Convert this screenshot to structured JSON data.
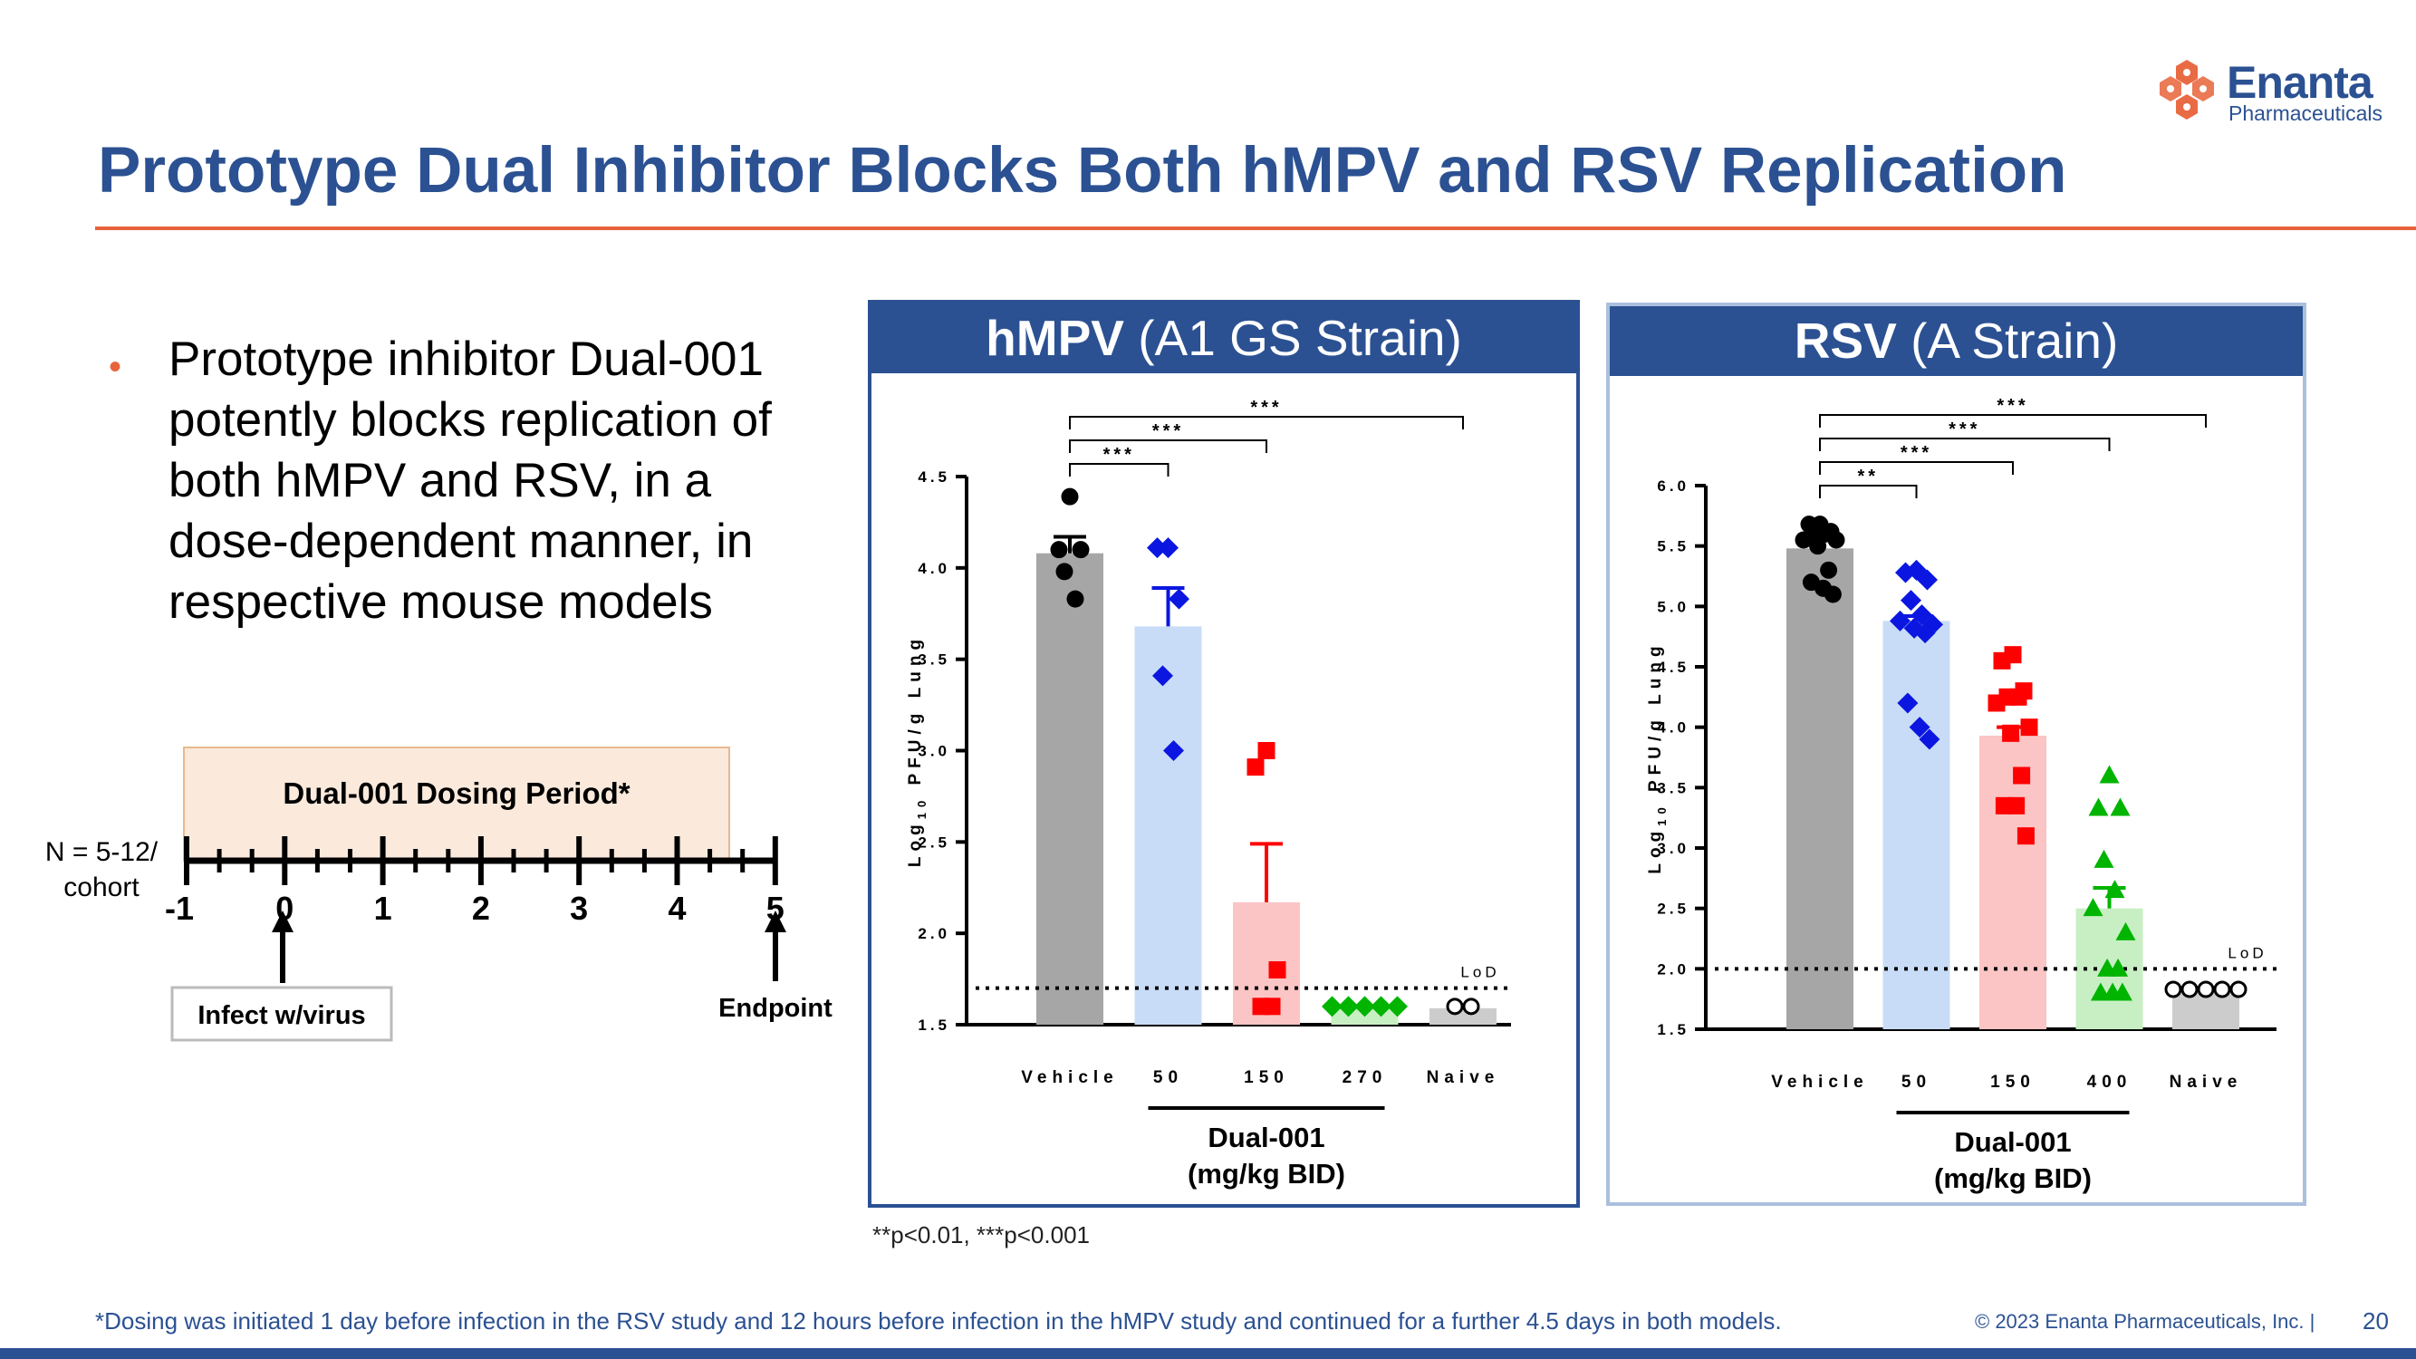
{
  "logo": {
    "name": "Enanta",
    "subtitle": "Pharmaceuticals",
    "mark_icon": "hexagon-molecule-icon",
    "color": "#e8633a"
  },
  "title": "Prototype Dual Inhibitor Blocks Both hMPV and RSV Replication",
  "bullet": "Prototype inhibitor Dual-001 potently blocks replication of both hMPV and RSV, in a dose-dependent manner, in respective mouse models",
  "timeline": {
    "period_label": "Dual-001 Dosing Period*",
    "cohort_label_1": "N = 5-12/",
    "cohort_label_2": "cohort",
    "ticks": [
      "-1",
      "0",
      "1",
      "2",
      "3",
      "4",
      "5"
    ],
    "infect_label": "Infect w/virus",
    "endpoint_label": "Endpoint"
  },
  "panels": {
    "hmpv": {
      "title_bold": "hMPV",
      "title_rest": "(A1 GS Strain)"
    },
    "rsv": {
      "title_bold": "RSV",
      "title_rest": "(A Strain)"
    }
  },
  "chart_data": [
    {
      "type": "bar",
      "title": "hMPV (A1 GS Strain)",
      "ylabel_pre": "Log",
      "ylabel_sub": "10",
      "ylabel_post": " PFU/g Lung",
      "ylim": [
        1.5,
        4.5
      ],
      "yticks": [
        "1.5",
        "2.0",
        "2.5",
        "3.0",
        "3.5",
        "4.0",
        "4.5"
      ],
      "categories": [
        "Vehicle",
        "50",
        "150",
        "270",
        "Naive"
      ],
      "group_label_1": "Dual-001",
      "group_label_2": "(mg/kg BID)",
      "means": [
        4.08,
        3.68,
        2.17,
        1.6,
        1.59
      ],
      "error_upper": [
        4.17,
        3.89,
        2.49,
        1.6,
        1.59
      ],
      "points": [
        [
          4.39,
          4.1,
          4.1,
          3.98,
          3.83
        ],
        [
          4.11,
          4.11,
          3.83,
          3.41,
          3.0
        ],
        [
          3.0,
          2.91,
          1.8,
          1.6,
          1.6
        ],
        [
          1.6,
          1.6,
          1.6,
          1.6,
          1.6
        ],
        [
          1.6,
          1.6
        ]
      ],
      "markers": [
        "circle",
        "diamond",
        "square",
        "diamond",
        "open-circle"
      ],
      "bar_colors": [
        "#a6a6a6",
        "#c9dcf7",
        "#fbc5c5",
        "#c8efc3",
        "#cccccc"
      ],
      "point_colors": [
        "#000000",
        "#0b17e0",
        "#ff0000",
        "#00b400",
        "#000000"
      ],
      "lod": 1.7,
      "lod_label": "LoD",
      "significance": [
        {
          "from": 0,
          "to": 1,
          "label": "***"
        },
        {
          "from": 0,
          "to": 2,
          "label": "***"
        },
        {
          "from": 0,
          "to": 4,
          "label": "***"
        }
      ]
    },
    {
      "type": "bar",
      "title": "RSV (A Strain)",
      "ylabel_pre": "Log",
      "ylabel_sub": "10",
      "ylabel_post": " PFU/g Lung",
      "ylim": [
        1.5,
        6.0
      ],
      "yticks": [
        "1.5",
        "2.0",
        "2.5",
        "3.0",
        "3.5",
        "4.0",
        "4.5",
        "5.0",
        "5.5",
        "6.0"
      ],
      "categories": [
        "Vehicle",
        "50",
        "150",
        "400",
        "Naive"
      ],
      "group_label_1": "Dual-001",
      "group_label_2": "(mg/kg BID)",
      "means": [
        5.48,
        4.88,
        3.93,
        2.5,
        1.8
      ],
      "error_upper": [
        5.55,
        4.92,
        4.0,
        2.67,
        1.8
      ],
      "points": [
        [
          5.68,
          5.68,
          5.62,
          5.62,
          5.6,
          5.55,
          5.55,
          5.5,
          5.3,
          5.2,
          5.15,
          5.1
        ],
        [
          5.3,
          5.28,
          5.22,
          5.05,
          4.93,
          4.88,
          4.85,
          4.82,
          4.78,
          4.2,
          4.0,
          3.9
        ],
        [
          4.6,
          4.55,
          4.3,
          4.25,
          4.25,
          4.2,
          4.0,
          3.95,
          3.6,
          3.35,
          3.35,
          3.1
        ],
        [
          3.6,
          3.33,
          3.33,
          2.9,
          2.65,
          2.5,
          2.3,
          2.0,
          2.0,
          1.8,
          1.8,
          1.8
        ],
        [
          1.83,
          1.83,
          1.83,
          1.83,
          1.83
        ]
      ],
      "markers": [
        "circle",
        "diamond",
        "square",
        "triangle",
        "open-circle"
      ],
      "bar_colors": [
        "#a6a6a6",
        "#c9dcf7",
        "#fbc5c5",
        "#c8efc3",
        "#cccccc"
      ],
      "point_colors": [
        "#000000",
        "#0b17e0",
        "#ff0000",
        "#00b400",
        "#000000"
      ],
      "lod": 2.0,
      "lod_label": "LoD",
      "significance": [
        {
          "from": 0,
          "to": 1,
          "label": "**"
        },
        {
          "from": 0,
          "to": 2,
          "label": "***"
        },
        {
          "from": 0,
          "to": 3,
          "label": "***"
        },
        {
          "from": 0,
          "to": 4,
          "label": "***"
        }
      ]
    }
  ],
  "footnote_sig": "**p<0.01, ***p<0.001",
  "footnote_dosing": "*Dosing was initiated 1 day before infection in the RSV study and 12 hours before infection in the hMPV study and continued for a further 4.5 days in both models.",
  "copyright": "© 2023  Enanta Pharmaceuticals, Inc.   |",
  "page_number": "20",
  "colors": {
    "brand_blue": "#2b5192",
    "accent_orange": "#e8633a",
    "dosing_fill": "#fbeadc",
    "dosing_border": "#e8b98e"
  }
}
